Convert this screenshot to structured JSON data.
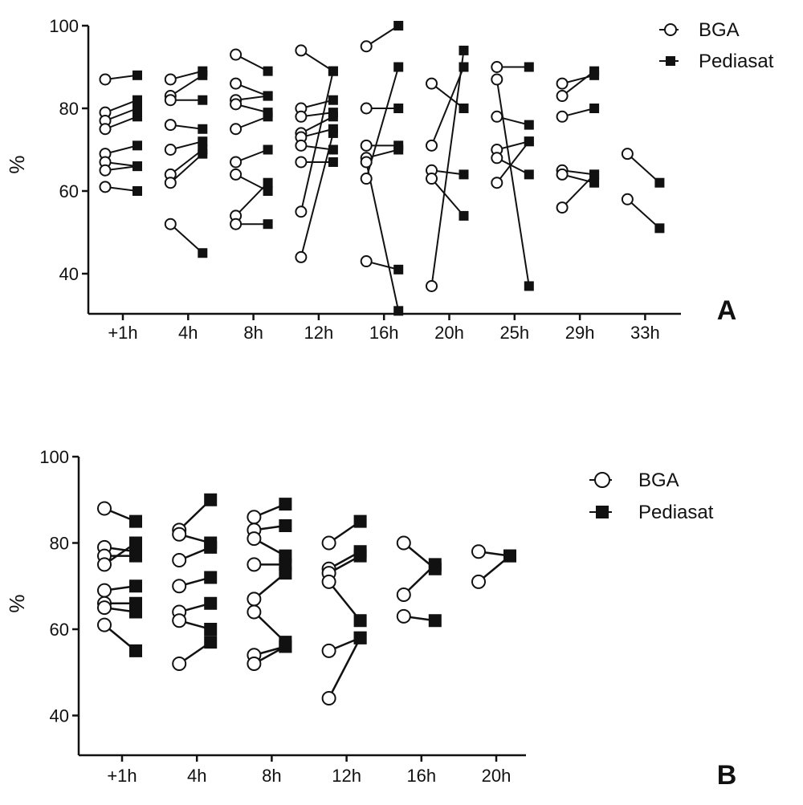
{
  "chart_data": [
    {
      "type": "line",
      "panel_label": "A",
      "ylabel": "%",
      "yticks": [
        40,
        60,
        80,
        100
      ],
      "ylim": [
        30,
        100
      ],
      "categories": [
        "+1h",
        "4h",
        "8h",
        "12h",
        "16h",
        "20h",
        "25h",
        "29h",
        "33h"
      ],
      "series_names": [
        "BGA",
        "Pediasat"
      ],
      "legend_position": "top-right",
      "pairs": [
        [
          [
            87,
            88
          ],
          [
            79,
            82
          ],
          [
            77,
            80
          ],
          [
            75,
            78
          ],
          [
            69,
            71
          ],
          [
            67,
            66
          ],
          [
            65,
            66
          ],
          [
            61,
            60
          ]
        ],
        [
          [
            87,
            89
          ],
          [
            83,
            88
          ],
          [
            82,
            82
          ],
          [
            76,
            75
          ],
          [
            70,
            72
          ],
          [
            64,
            70
          ],
          [
            62,
            69
          ],
          [
            52,
            45
          ]
        ],
        [
          [
            93,
            89
          ],
          [
            86,
            83
          ],
          [
            82,
            83
          ],
          [
            81,
            79
          ],
          [
            75,
            78
          ],
          [
            67,
            70
          ],
          [
            64,
            60
          ],
          [
            54,
            62
          ],
          [
            52,
            52
          ]
        ],
        [
          [
            94,
            89
          ],
          [
            80,
            82
          ],
          [
            78,
            79
          ],
          [
            74,
            78
          ],
          [
            73,
            75
          ],
          [
            71,
            70
          ],
          [
            67,
            67
          ],
          [
            55,
            89
          ],
          [
            44,
            74
          ]
        ],
        [
          [
            95,
            100
          ],
          [
            80,
            80
          ],
          [
            71,
            71
          ],
          [
            68,
            70
          ],
          [
            67,
            31
          ],
          [
            63,
            90
          ],
          [
            43,
            41
          ]
        ],
        [
          [
            86,
            80
          ],
          [
            71,
            90
          ],
          [
            65,
            64
          ],
          [
            63,
            54
          ],
          [
            37,
            94
          ]
        ],
        [
          [
            90,
            90
          ],
          [
            87,
            37
          ],
          [
            78,
            76
          ],
          [
            70,
            72
          ],
          [
            68,
            64
          ],
          [
            62,
            72
          ]
        ],
        [
          [
            86,
            88
          ],
          [
            83,
            89
          ],
          [
            78,
            80
          ],
          [
            65,
            64
          ],
          [
            64,
            62
          ],
          [
            56,
            64
          ]
        ],
        [
          [
            69,
            62
          ],
          [
            58,
            51
          ]
        ]
      ]
    },
    {
      "type": "line",
      "panel_label": "B",
      "ylabel": "%",
      "yticks": [
        40,
        60,
        80,
        100
      ],
      "ylim": [
        30,
        100
      ],
      "categories": [
        "+1h",
        "4h",
        "8h",
        "12h",
        "16h",
        "20h"
      ],
      "series_names": [
        "BGA",
        "Pediasat"
      ],
      "legend_position": "top-right",
      "pairs": [
        [
          [
            88,
            85
          ],
          [
            79,
            78
          ],
          [
            77,
            77
          ],
          [
            75,
            80
          ],
          [
            69,
            70
          ],
          [
            66,
            66
          ],
          [
            65,
            64
          ],
          [
            61,
            55
          ]
        ],
        [
          [
            83,
            90
          ],
          [
            82,
            80
          ],
          [
            76,
            79
          ],
          [
            70,
            72
          ],
          [
            64,
            66
          ],
          [
            62,
            60
          ],
          [
            52,
            57
          ]
        ],
        [
          [
            86,
            89
          ],
          [
            83,
            84
          ],
          [
            81,
            77
          ],
          [
            75,
            75
          ],
          [
            67,
            73
          ],
          [
            64,
            57
          ],
          [
            54,
            56
          ],
          [
            52,
            56
          ]
        ],
        [
          [
            80,
            85
          ],
          [
            74,
            78
          ],
          [
            73,
            77
          ],
          [
            71,
            62
          ],
          [
            55,
            58
          ],
          [
            44,
            58
          ]
        ],
        [
          [
            80,
            74
          ],
          [
            68,
            75
          ],
          [
            63,
            62
          ]
        ],
        [
          [
            78,
            77
          ],
          [
            71,
            77
          ]
        ]
      ]
    }
  ],
  "legend_marker_colors": {
    "open_circle_stroke": "#111111",
    "filled_square": "#111111"
  }
}
